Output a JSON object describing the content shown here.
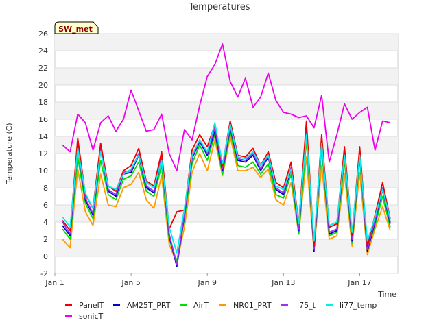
{
  "chart_data": {
    "type": "line",
    "title": "Temperatures",
    "xlabel": "Time",
    "ylabel": "Temperature (C)",
    "badge": "SW_met",
    "xlim": [
      0,
      18
    ],
    "ylim": [
      -2,
      26
    ],
    "yticks": [
      -2,
      0,
      2,
      4,
      6,
      8,
      10,
      12,
      14,
      16,
      18,
      20,
      22,
      24,
      26
    ],
    "xticks": [
      {
        "value": 0,
        "label": "Jan 1"
      },
      {
        "value": 4,
        "label": "Jan 5"
      },
      {
        "value": 8,
        "label": "Jan 9"
      },
      {
        "value": 12,
        "label": "Jan 13"
      },
      {
        "value": 16,
        "label": "Jan 17"
      }
    ],
    "grid": true,
    "legend_position": "bottom",
    "x": [
      0.4,
      0.8,
      1.2,
      1.6,
      2.0,
      2.4,
      2.8,
      3.2,
      3.6,
      4.0,
      4.4,
      4.8,
      5.2,
      5.6,
      6.0,
      6.4,
      6.8,
      7.2,
      7.6,
      8.0,
      8.4,
      8.8,
      9.2,
      9.6,
      10.0,
      10.4,
      10.8,
      11.2,
      11.6,
      12.0,
      12.4,
      12.8,
      13.2,
      13.6,
      14.0,
      14.4,
      14.8,
      15.2,
      15.6,
      16.0,
      16.4,
      16.8,
      17.2,
      17.6
    ],
    "series": [
      {
        "name": "PanelT",
        "color": "#ee0000",
        "values": [
          4.2,
          3.0,
          13.8,
          7.2,
          5.6,
          13.2,
          8.2,
          7.6,
          10.0,
          10.6,
          12.6,
          8.8,
          8.2,
          12.2,
          3.2,
          5.2,
          5.4,
          12.4,
          14.2,
          12.8,
          15.4,
          10.6,
          15.8,
          11.8,
          11.6,
          12.6,
          10.6,
          12.2,
          8.6,
          8.0,
          11.0,
          3.8,
          15.8,
          1.2,
          14.2,
          3.4,
          3.8,
          12.8,
          2.4,
          12.8,
          1.2,
          4.8,
          8.6,
          4.4
        ]
      },
      {
        "name": "AM25T_PRT",
        "color": "#0000cc",
        "values": [
          3.6,
          2.4,
          12.8,
          6.6,
          4.8,
          12.4,
          7.6,
          7.0,
          9.6,
          9.8,
          11.8,
          8.0,
          7.4,
          11.4,
          2.4,
          -1.2,
          4.8,
          11.4,
          13.4,
          11.8,
          14.6,
          10.0,
          15.0,
          11.2,
          11.0,
          11.8,
          10.0,
          11.6,
          7.8,
          7.2,
          10.2,
          3.0,
          14.8,
          0.6,
          13.4,
          2.6,
          3.0,
          12.0,
          1.8,
          12.0,
          0.6,
          4.0,
          7.8,
          3.8
        ]
      },
      {
        "name": "AirT",
        "color": "#00dd00",
        "values": [
          3.2,
          2.0,
          11.6,
          6.2,
          4.4,
          11.2,
          7.2,
          6.6,
          9.0,
          9.4,
          11.0,
          7.6,
          7.0,
          10.6,
          2.0,
          -0.6,
          4.4,
          10.8,
          13.0,
          11.2,
          14.2,
          9.6,
          14.6,
          10.6,
          10.4,
          11.0,
          9.6,
          10.8,
          7.2,
          6.8,
          9.6,
          2.6,
          13.6,
          0.8,
          12.6,
          2.4,
          2.8,
          11.2,
          1.6,
          11.4,
          0.8,
          3.6,
          7.0,
          3.4
        ]
      },
      {
        "name": "NR01_PRT",
        "color": "#ff9900",
        "values": [
          2.0,
          1.0,
          10.2,
          5.2,
          3.6,
          9.6,
          6.0,
          5.8,
          8.0,
          8.4,
          9.8,
          6.6,
          5.6,
          9.4,
          1.4,
          -0.8,
          3.4,
          9.8,
          12.0,
          10.0,
          13.6,
          9.4,
          14.0,
          10.0,
          10.0,
          10.4,
          9.2,
          10.2,
          6.6,
          6.0,
          8.6,
          2.6,
          11.6,
          0.6,
          10.6,
          2.0,
          2.4,
          9.6,
          1.2,
          9.8,
          0.2,
          3.2,
          5.8,
          3.0
        ]
      },
      {
        "name": "li75_t",
        "color": "#9933ee",
        "values": [
          4.0,
          2.6,
          13.0,
          6.8,
          5.0,
          12.6,
          7.8,
          7.2,
          9.8,
          10.0,
          12.0,
          8.2,
          7.6,
          11.6,
          2.6,
          -1.0,
          5.0,
          11.6,
          13.6,
          12.0,
          15.0,
          10.2,
          15.2,
          11.4,
          11.2,
          12.0,
          10.2,
          11.8,
          8.0,
          7.4,
          10.4,
          3.2,
          15.0,
          0.8,
          13.6,
          2.8,
          3.2,
          12.2,
          2.0,
          12.2,
          0.8,
          4.2,
          8.0,
          4.0
        ]
      },
      {
        "name": "li77_temp",
        "color": "#00eeee",
        "values": [
          4.6,
          3.4,
          12.6,
          7.4,
          5.6,
          12.2,
          8.2,
          7.8,
          9.6,
          10.2,
          11.8,
          8.6,
          8.0,
          11.2,
          3.4,
          0.4,
          5.6,
          11.8,
          13.6,
          12.2,
          15.6,
          10.8,
          15.4,
          11.6,
          11.4,
          12.2,
          10.6,
          11.8,
          8.2,
          7.8,
          10.2,
          3.8,
          14.2,
          1.8,
          13.2,
          3.6,
          4.0,
          11.8,
          2.8,
          11.8,
          1.8,
          4.6,
          7.8,
          4.4
        ]
      },
      {
        "name": "sonicT",
        "color": "#ee00ee",
        "values": [
          13.0,
          12.2,
          16.6,
          15.6,
          12.4,
          15.6,
          16.4,
          14.6,
          16.0,
          19.4,
          17.0,
          14.6,
          14.8,
          16.6,
          12.0,
          10.0,
          14.8,
          13.6,
          17.6,
          21.0,
          22.4,
          24.8,
          20.4,
          18.6,
          20.8,
          17.4,
          18.6,
          21.4,
          18.2,
          16.8,
          16.6,
          16.2,
          16.4,
          15.0,
          18.8,
          11.0,
          14.2,
          17.8,
          16.0,
          16.8,
          17.4,
          12.4,
          15.8,
          15.6
        ]
      }
    ]
  }
}
